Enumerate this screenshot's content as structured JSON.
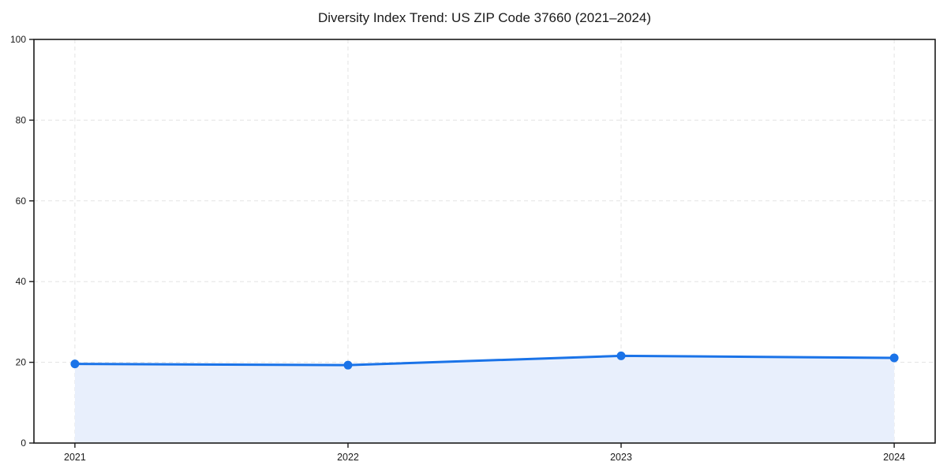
{
  "figure": {
    "background": "#ffffff"
  },
  "chart_data": {
    "type": "area",
    "title": "Diversity Index Trend: US ZIP Code 37660 (2021–2024)",
    "x": [
      2021,
      2022,
      2023,
      2024
    ],
    "series": [
      {
        "name": "Diversity Index",
        "values": [
          19.6,
          19.3,
          21.6,
          21.1
        ]
      }
    ],
    "xlabel": "",
    "ylabel": "",
    "xlim": [
      2020.85,
      2024.15
    ],
    "ylim": [
      0,
      100
    ],
    "y_ticks": [
      0,
      20,
      40,
      60,
      80,
      100
    ],
    "x_ticks": [
      2021,
      2022,
      2023,
      2024
    ],
    "grid": "dashed, both axes",
    "legend_position": "none",
    "line_color": "#1a73e8",
    "marker": "circle",
    "fill_below_line": true,
    "fill_color": "#e8effc",
    "grid_color": "#e3e3e3",
    "spine_color": "#1a1a1a",
    "text_color": "#1a1a1a"
  }
}
